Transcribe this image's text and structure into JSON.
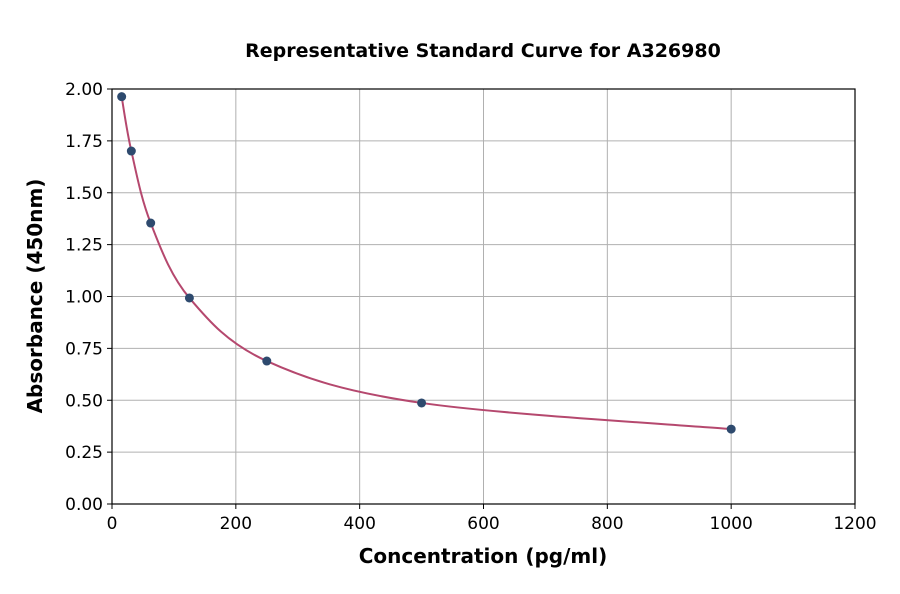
{
  "chart_data": {
    "type": "scatter",
    "title": "Representative Standard Curve for A326980",
    "xlabel": "Concentration (pg/ml)",
    "ylabel": "Absorbance (450nm)",
    "xlim": [
      0,
      1200
    ],
    "ylim": [
      0,
      2.0
    ],
    "xticks": [
      "0",
      "200",
      "400",
      "600",
      "800",
      "1000",
      "1200"
    ],
    "yticks": [
      "0.00",
      "0.25",
      "0.50",
      "0.75",
      "1.00",
      "1.25",
      "1.50",
      "1.75",
      "2.00"
    ],
    "grid": true,
    "x": [
      15.6,
      31.25,
      62.5,
      125,
      250,
      500,
      1000
    ],
    "y": [
      1.963,
      1.701,
      1.354,
      0.993,
      0.689,
      0.487,
      0.361
    ],
    "fit_curve": true,
    "colors": {
      "points": "#2e4a6e",
      "curve": "#b5486e",
      "grid": "#b0b0b0"
    }
  }
}
